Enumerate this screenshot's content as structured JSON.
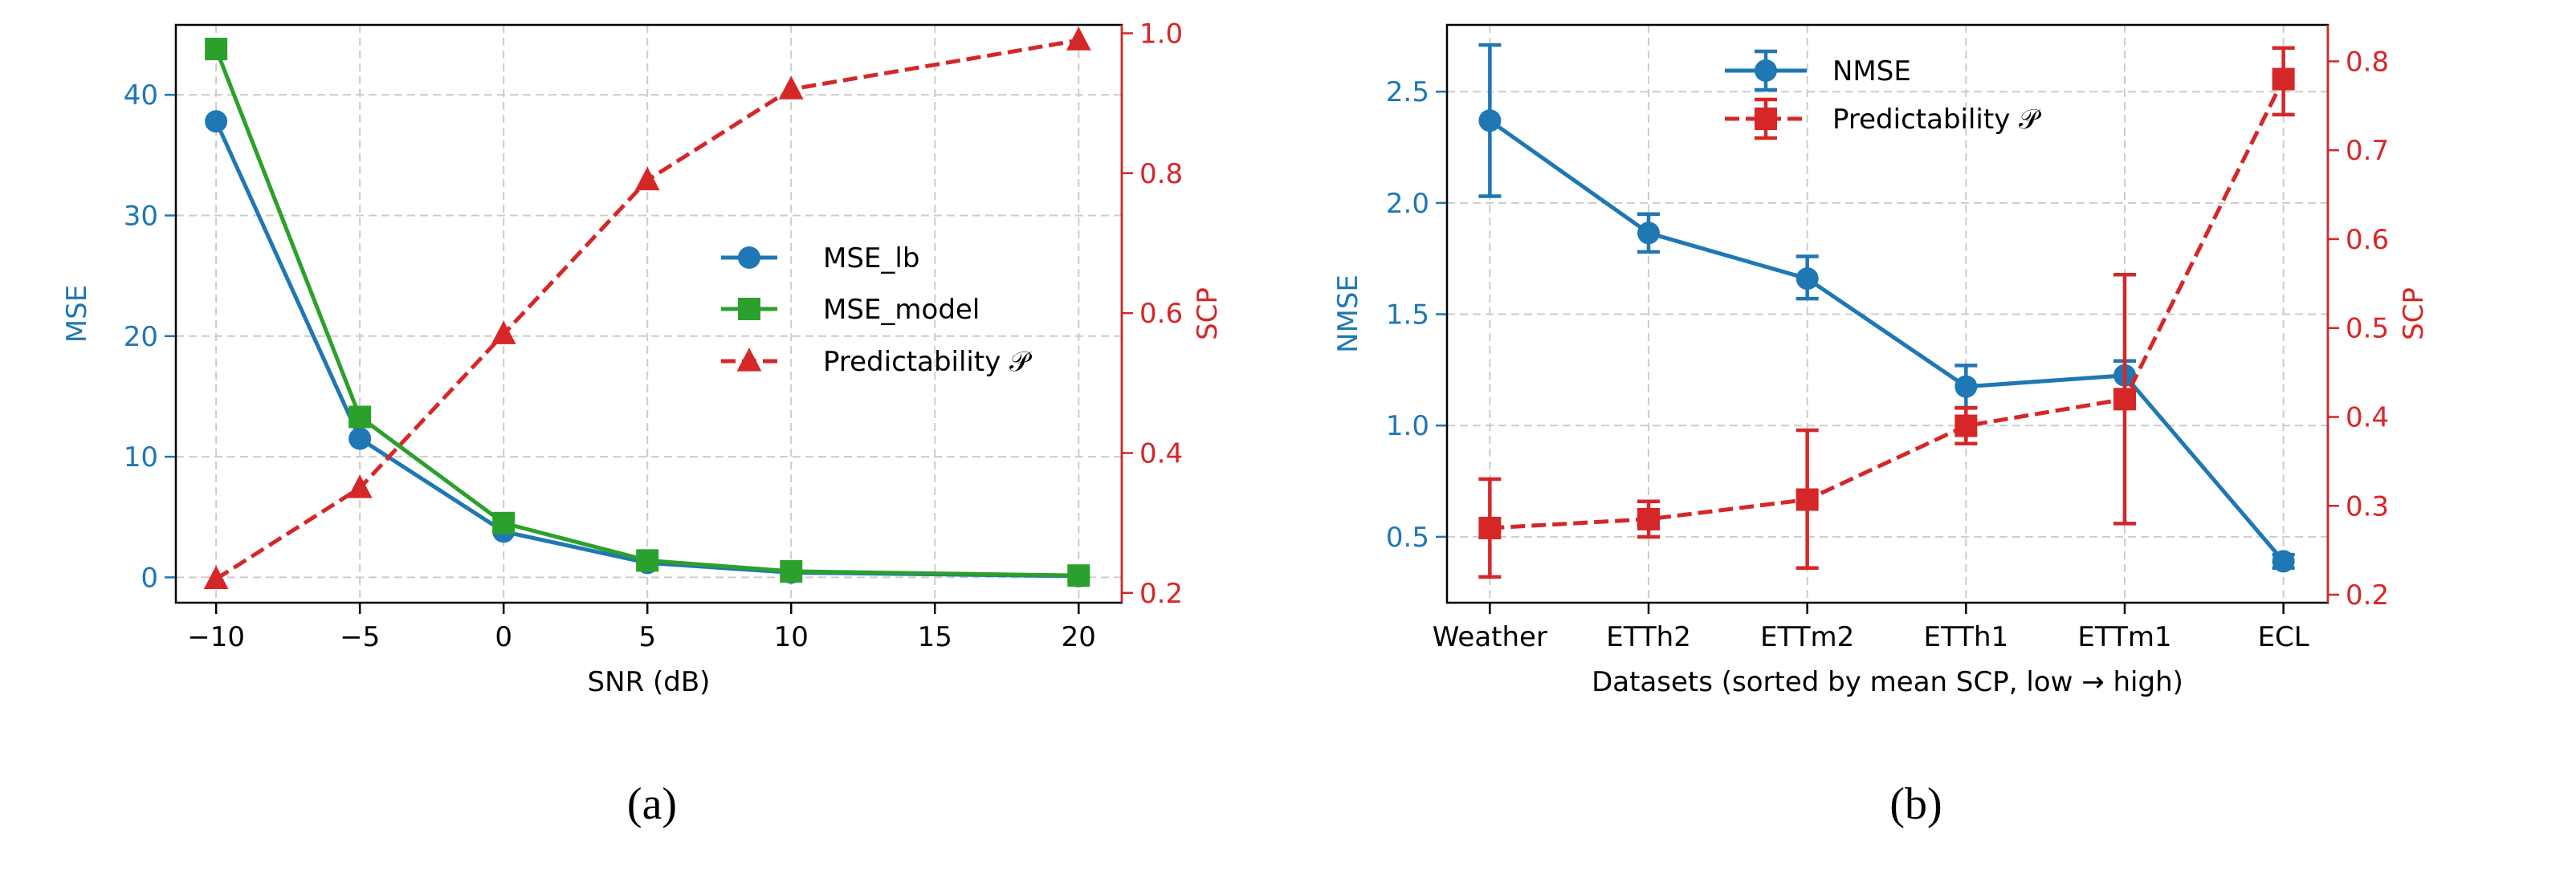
{
  "colors": {
    "blue": "#1f77b4",
    "green": "#2ca02c",
    "red": "#d62728",
    "grid": "#cccccc"
  },
  "chart_data": [
    {
      "type": "line",
      "caption": "(a)",
      "xlabel": "SNR (dB)",
      "ylabel": "MSE",
      "y2label": "SCP",
      "xlim": [
        -11.4,
        21.5
      ],
      "ylim": [
        -2.1,
        45.8
      ],
      "y2lim": [
        0.186,
        1.012
      ],
      "xticks": [
        -10,
        -5,
        0,
        5,
        10,
        15,
        20
      ],
      "xticklabels": [
        "−10",
        "−5",
        "0",
        "5",
        "10",
        "15",
        "20"
      ],
      "yticks": [
        0,
        10,
        20,
        30,
        40
      ],
      "yticklabels": [
        "0",
        "10",
        "20",
        "30",
        "40"
      ],
      "y2ticks": [
        0.2,
        0.4,
        0.6,
        0.8,
        1.0
      ],
      "y2ticklabels": [
        "0.2",
        "0.4",
        "0.6",
        "0.8",
        "1.0"
      ],
      "grid": true,
      "legend_placement": "center-right",
      "x": [
        -10,
        -5,
        0,
        5,
        10,
        20
      ],
      "series": [
        {
          "name": "MSE_lb",
          "axis": "left",
          "color": "#1f77b4",
          "marker": "circle",
          "dash": false,
          "values": [
            37.8,
            11.5,
            3.8,
            1.2,
            0.4,
            0.1
          ]
        },
        {
          "name": "MSE_model",
          "axis": "left",
          "color": "#2ca02c",
          "marker": "square",
          "dash": false,
          "values": [
            43.8,
            13.3,
            4.5,
            1.4,
            0.5,
            0.15
          ]
        },
        {
          "name": "Predictability 𝒫",
          "axis": "right",
          "color": "#d62728",
          "marker": "triangle",
          "dash": true,
          "values": [
            0.22,
            0.35,
            0.57,
            0.79,
            0.92,
            0.99
          ]
        }
      ]
    },
    {
      "type": "line",
      "caption": "(b)",
      "xlabel": "Datasets (sorted by mean SCP, low → high)",
      "ylabel": "NMSE",
      "y2label": "SCP",
      "xlim": [
        -0.27,
        5.28
      ],
      "ylim": [
        0.204,
        2.8
      ],
      "y2lim": [
        0.191,
        0.841
      ],
      "categories": [
        "Weather",
        "ETTh2",
        "ETTm2",
        "ETTh1",
        "ETTm1",
        "ECL"
      ],
      "yticks": [
        0.5,
        1.0,
        1.5,
        2.0,
        2.5
      ],
      "yticklabels": [
        "0.5",
        "1.0",
        "1.5",
        "2.0",
        "2.5"
      ],
      "y2ticks": [
        0.2,
        0.3,
        0.4,
        0.5,
        0.6,
        0.7,
        0.8
      ],
      "y2ticklabels": [
        "0.2",
        "0.3",
        "0.4",
        "0.5",
        "0.6",
        "0.7",
        "0.8"
      ],
      "grid": true,
      "legend_placement": "upper-center",
      "series": [
        {
          "name": "NMSE",
          "axis": "left",
          "color": "#1f77b4",
          "marker": "circle",
          "dash": false,
          "values": [
            2.37,
            1.865,
            1.66,
            1.175,
            1.225,
            0.39
          ],
          "err_low": [
            2.03,
            1.78,
            1.57,
            1.08,
            1.16,
            0.36
          ],
          "err_high": [
            2.71,
            1.95,
            1.76,
            1.27,
            1.29,
            0.42
          ]
        },
        {
          "name": "Predictability 𝒫",
          "axis": "right",
          "color": "#d62728",
          "marker": "square",
          "dash": true,
          "values": [
            0.275,
            0.285,
            0.307,
            0.39,
            0.42,
            0.78
          ],
          "err_low": [
            0.22,
            0.265,
            0.23,
            0.37,
            0.28,
            0.74
          ],
          "err_high": [
            0.33,
            0.305,
            0.385,
            0.41,
            0.56,
            0.815
          ]
        }
      ]
    }
  ]
}
